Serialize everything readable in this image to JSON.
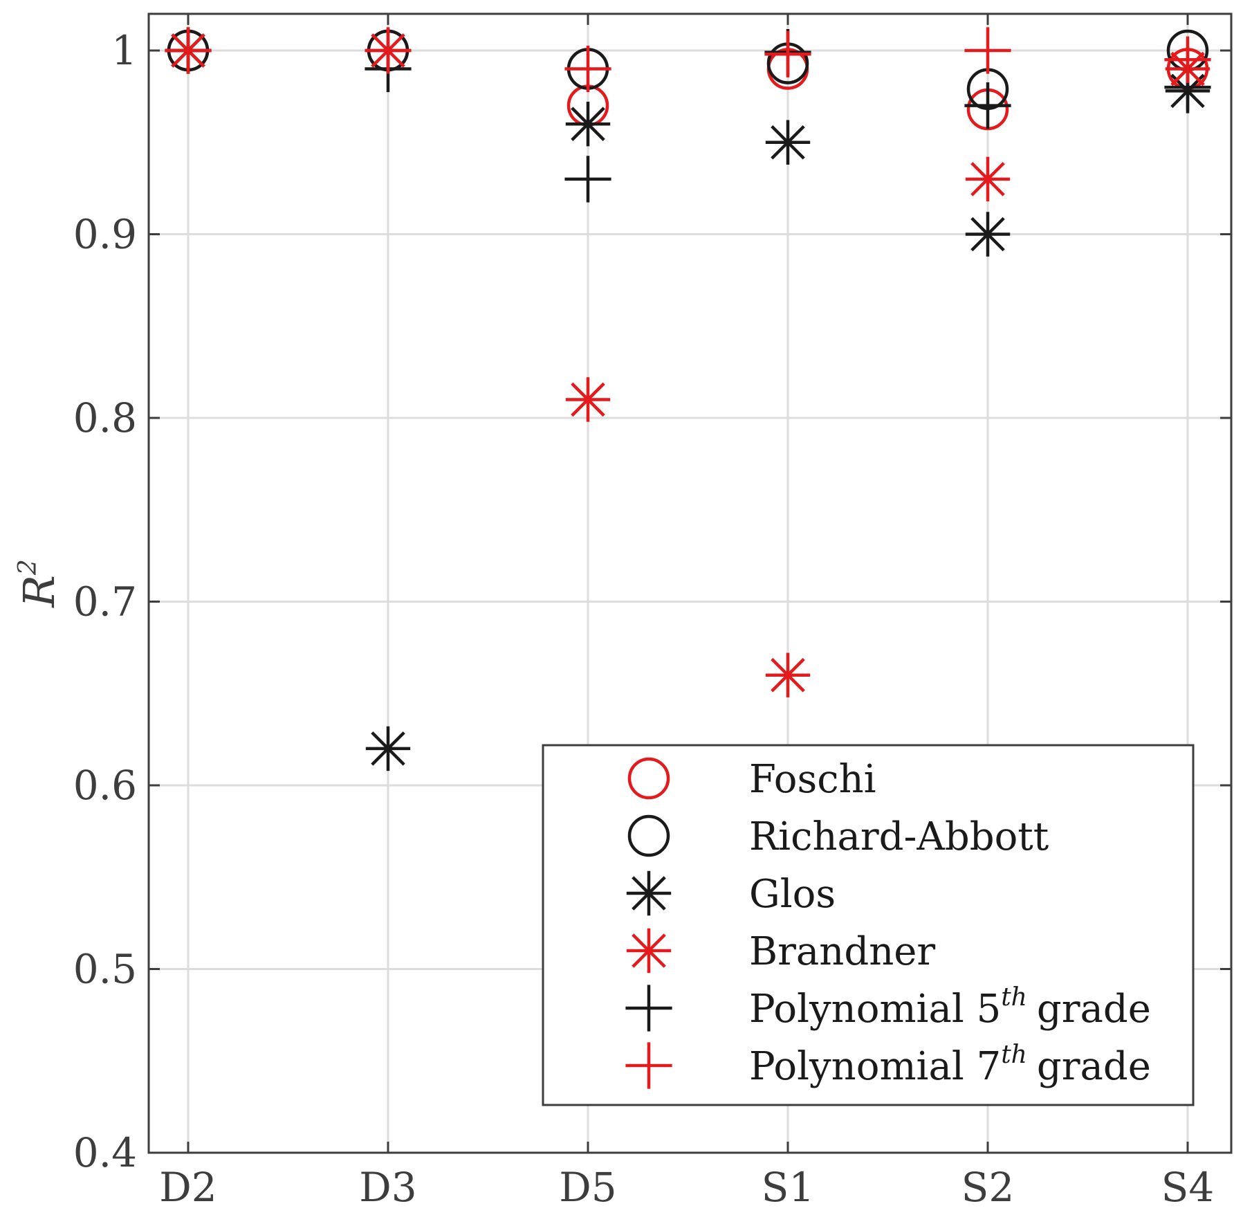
{
  "chart_data": {
    "type": "scatter",
    "title": "",
    "xlabel": "",
    "ylabel": "R",
    "ylabel_superscript": "2",
    "categories": [
      "D2",
      "D3",
      "D5",
      "S1",
      "S2",
      "S4"
    ],
    "ylim": [
      0.4,
      1.02
    ],
    "yticks": [
      0.4,
      0.5,
      0.6,
      0.7,
      0.8,
      0.9,
      1
    ],
    "ytick_labels": [
      "0.4",
      "0.5",
      "0.6",
      "0.7",
      "0.8",
      "0.9",
      "1"
    ],
    "grid": true,
    "legend_position": "bottom-right",
    "series": [
      {
        "name": "Foschi",
        "marker": "circle",
        "color": "#e41a1c",
        "values": [
          1.0,
          1.0,
          0.97,
          0.99,
          0.968,
          0.99
        ]
      },
      {
        "name": "Richard-Abbott",
        "marker": "circle",
        "color": "#1a1a1a",
        "values": [
          1.0,
          1.0,
          0.99,
          0.993,
          0.979,
          1.0
        ]
      },
      {
        "name": "Glos",
        "marker": "asterisk",
        "color": "#1a1a1a",
        "values": [
          1.0,
          0.62,
          0.96,
          0.95,
          0.9,
          0.978
        ]
      },
      {
        "name": "Brandner",
        "marker": "asterisk",
        "color": "#e41a1c",
        "values": [
          1.0,
          1.0,
          0.81,
          0.66,
          0.93,
          0.99
        ]
      },
      {
        "name": "Polynomial 5th grade",
        "label_main": "Polynomial 5",
        "label_sup": "th",
        "label_tail": "grade",
        "marker": "plus",
        "color": "#1a1a1a",
        "values": [
          1.0,
          0.99,
          0.93,
          0.999,
          0.97,
          0.98
        ]
      },
      {
        "name": "Polynomial 7th grade",
        "label_main": "Polynomial 7",
        "label_sup": "th",
        "label_tail": "grade",
        "marker": "plus",
        "color": "#e41a1c",
        "values": [
          1.0,
          1.0,
          0.99,
          0.998,
          1.0,
          0.995
        ]
      }
    ]
  }
}
